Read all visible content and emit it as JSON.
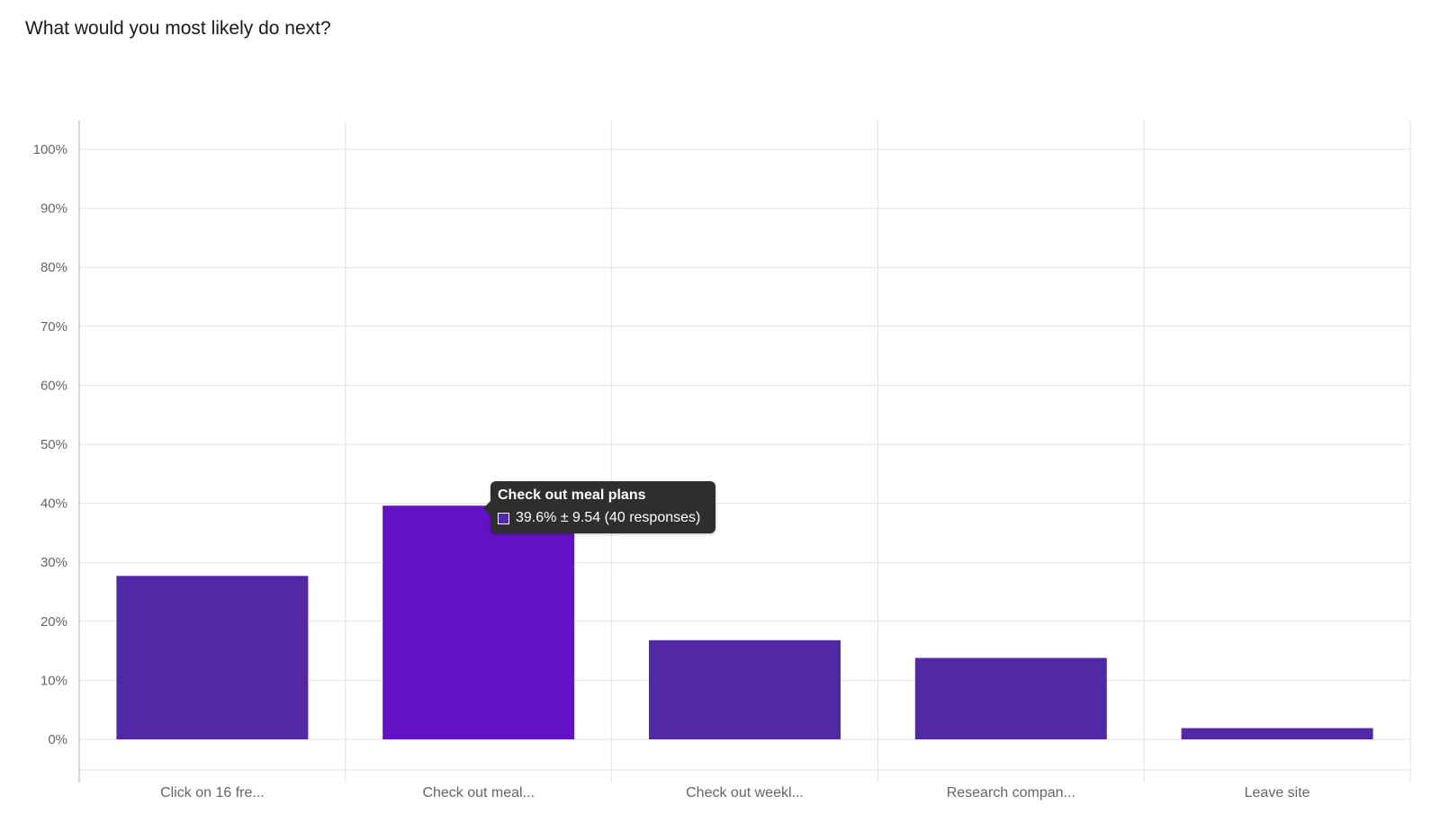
{
  "question": {
    "title": "What would you most likely do next?"
  },
  "colors": {
    "bar": "#5129a6",
    "bar_highlight": "#6311c6",
    "grid": "#e3e3e3",
    "axis": "#c8c8c8",
    "tooltip_bg": "#2e2e2e"
  },
  "chart_data": {
    "type": "bar",
    "categories": [
      "Click on 16 fre...",
      "Check out meal...",
      "Check out weekl...",
      "Research compan...",
      "Leave site"
    ],
    "values": [
      27.7,
      39.6,
      16.8,
      13.8,
      1.9
    ],
    "ylim": [
      0,
      100
    ],
    "yticks": [
      "0%",
      "10%",
      "20%",
      "30%",
      "40%",
      "50%",
      "60%",
      "70%",
      "80%",
      "90%",
      "100%"
    ],
    "highlighted_index": 1,
    "grid": true,
    "tooltip": {
      "title": "Check out meal plans",
      "value_text": "39.6% ± 9.54 (40 responses)"
    }
  }
}
